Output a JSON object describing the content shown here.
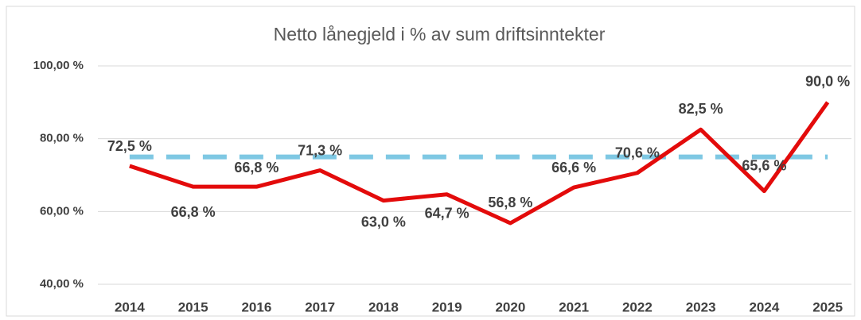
{
  "chart_data": {
    "type": "line",
    "title": "Netto lånegjeld i % av sum driftsinntekter",
    "categories": [
      "2014",
      "2015",
      "2016",
      "2017",
      "2018",
      "2019",
      "2020",
      "2021",
      "2022",
      "2023",
      "2024",
      "2025"
    ],
    "series": [
      {
        "color": "#e30b0b",
        "values": [
          72.5,
          66.8,
          66.8,
          71.3,
          63.0,
          64.7,
          56.8,
          66.6,
          70.6,
          82.5,
          65.6,
          90.0
        ],
        "value_labels": [
          "72,5 %",
          "66,8 %",
          "66,8 %",
          "71,3 %",
          "63,0 %",
          "64,7 %",
          "56,8 %",
          "66,6 %",
          "70,6 %",
          "82,5 %",
          "65,6 %",
          "90,0 %"
        ]
      }
    ],
    "reference_line": {
      "value": 75,
      "color": "#7ec8e3"
    },
    "ylim": [
      40,
      100
    ],
    "yticks": [
      {
        "value": 40,
        "label": "40,00 %"
      },
      {
        "value": 60,
        "label": "60,00 %"
      },
      {
        "value": 80,
        "label": "80,00 %"
      },
      {
        "value": 100,
        "label": "100,00 %"
      }
    ],
    "grid": true
  }
}
